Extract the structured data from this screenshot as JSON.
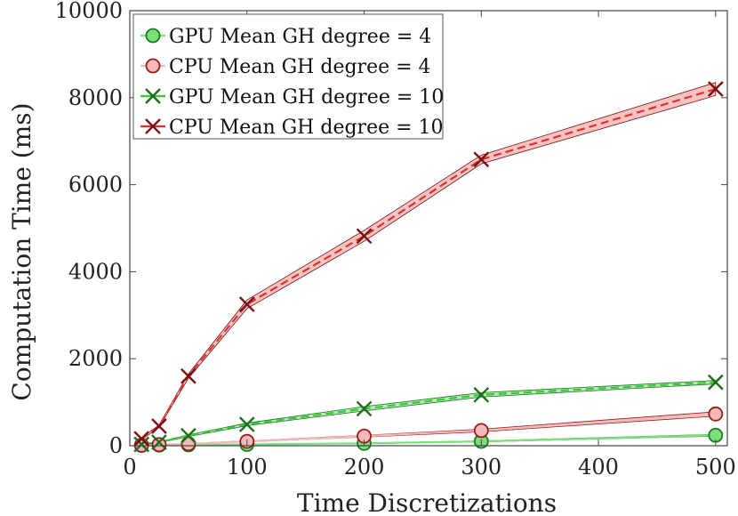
{
  "chart_data": {
    "type": "line",
    "xlabel": "Time Discretizations",
    "ylabel": "Computation Time (ms)",
    "xlim": [
      0,
      510
    ],
    "ylim": [
      0,
      10000
    ],
    "x_ticks": [
      "0",
      "100",
      "200",
      "300",
      "400",
      "500"
    ],
    "y_ticks": [
      "0",
      "2000",
      "4000",
      "6000",
      "8000",
      "10000"
    ],
    "legend_position": "top-left",
    "grid": false,
    "series": [
      {
        "name": "GPU Mean GH degree = 4",
        "marker": "circle",
        "line_style": "solid",
        "color": "#1e7a1e",
        "fill": "#7be07b",
        "band_color": "#a8e6a8",
        "x": [
          10,
          25,
          50,
          100,
          200,
          300,
          500
        ],
        "y": [
          10,
          15,
          20,
          30,
          55,
          100,
          240
        ],
        "y_low": [
          8,
          12,
          17,
          26,
          48,
          88,
          220
        ],
        "y_high": [
          12,
          18,
          24,
          35,
          62,
          112,
          260
        ]
      },
      {
        "name": "CPU Mean GH degree = 4",
        "marker": "circle",
        "line_style": "solid",
        "color": "#9b1b1b",
        "fill": "#f4b9b9",
        "band_color": "#f4b9b9",
        "x": [
          10,
          25,
          50,
          100,
          200,
          300,
          500
        ],
        "y": [
          10,
          25,
          45,
          100,
          220,
          350,
          730
        ],
        "y_low": [
          8,
          20,
          38,
          90,
          200,
          320,
          680
        ],
        "y_high": [
          12,
          30,
          52,
          112,
          240,
          380,
          780
        ]
      },
      {
        "name": "GPU Mean GH degree = 10",
        "marker": "x",
        "line_style": "dashed",
        "color": "#1e6e1e",
        "fill": "#33cc33",
        "band_color": "#a8e6a8",
        "x": [
          10,
          25,
          50,
          100,
          200,
          300,
          500
        ],
        "y": [
          30,
          80,
          230,
          490,
          850,
          1170,
          1460
        ],
        "y_low": [
          25,
          70,
          210,
          460,
          800,
          1120,
          1420
        ],
        "y_high": [
          35,
          90,
          250,
          520,
          900,
          1220,
          1500
        ]
      },
      {
        "name": "CPU Mean GH degree = 10",
        "marker": "x",
        "line_style": "dashed",
        "color": "#7a1010",
        "fill": "#e03030",
        "band_color": "#f4b9b9",
        "x": [
          10,
          25,
          50,
          100,
          200,
          300,
          500
        ],
        "y": [
          160,
          450,
          1600,
          3250,
          4820,
          6580,
          8200
        ],
        "y_low": [
          140,
          420,
          1550,
          3150,
          4700,
          6480,
          8050
        ],
        "y_high": [
          180,
          480,
          1650,
          3350,
          4950,
          6680,
          8350
        ]
      }
    ]
  }
}
